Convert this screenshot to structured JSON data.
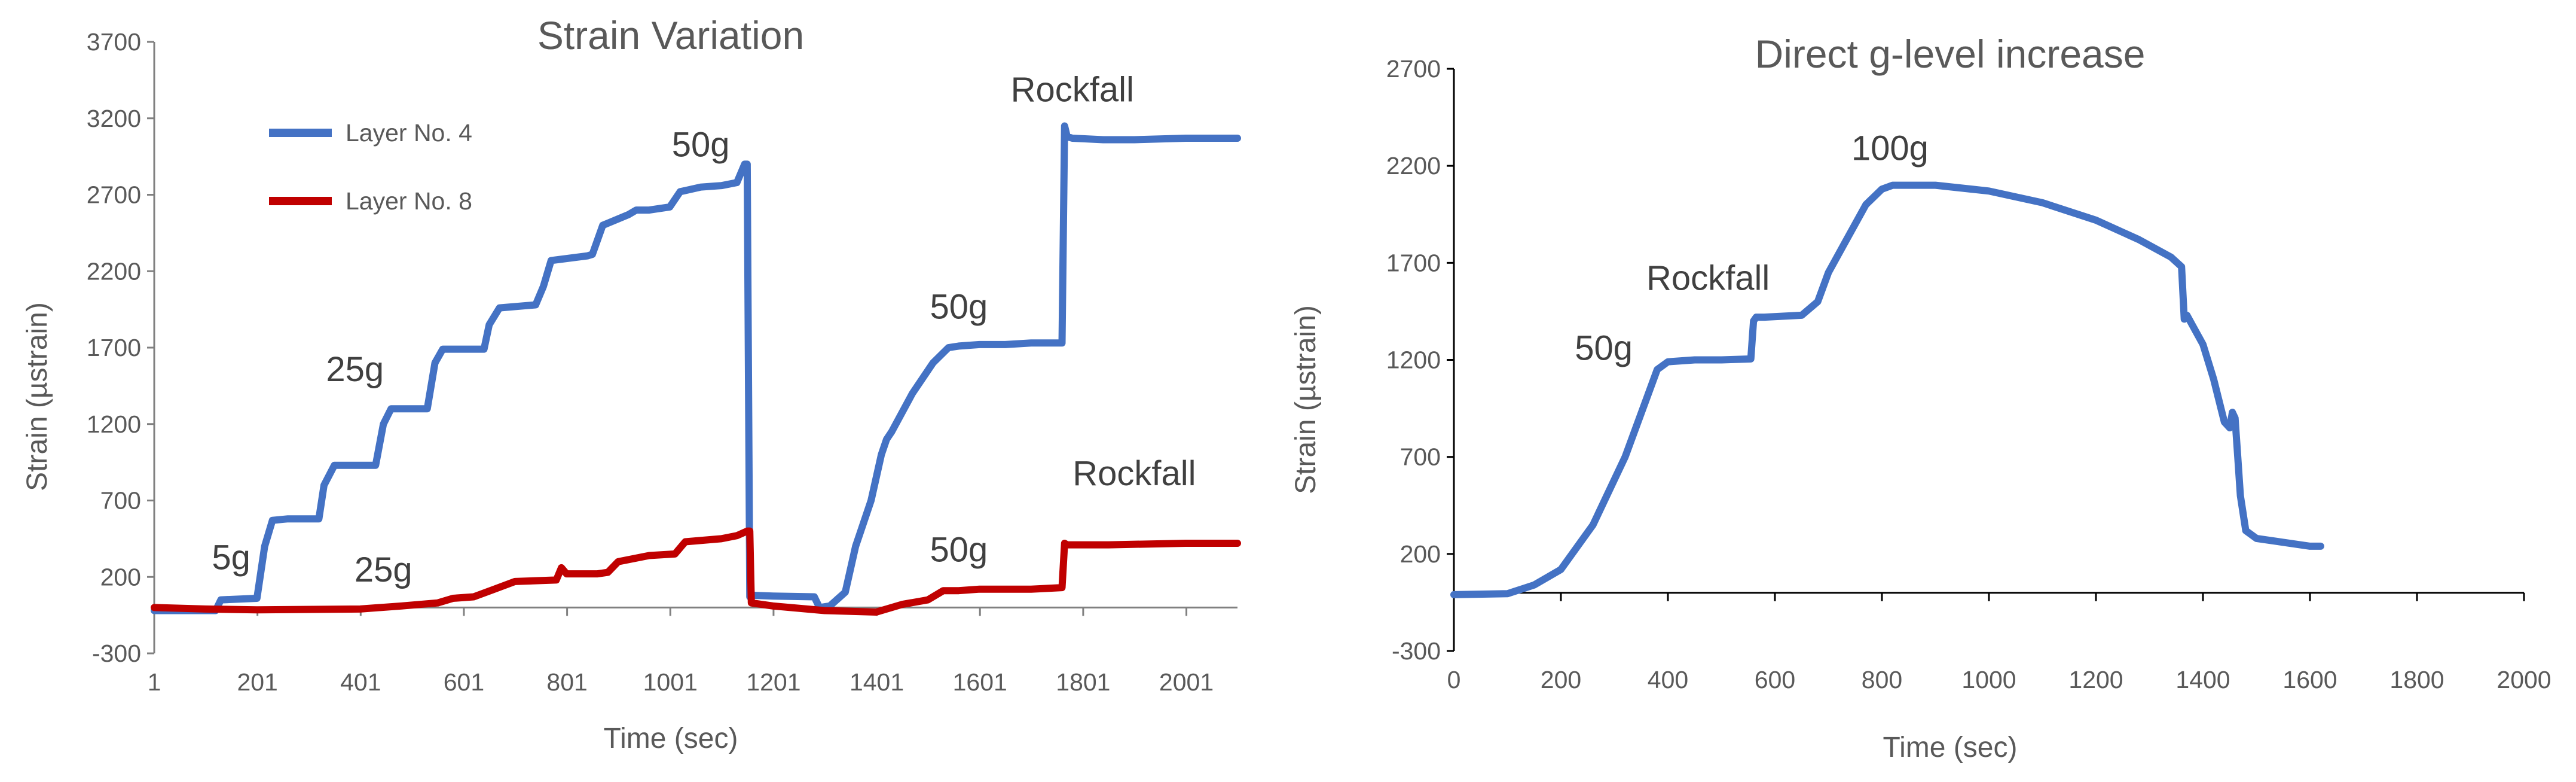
{
  "chart_data": [
    {
      "type": "line",
      "title": "Strain Variation",
      "xlabel": "Time (sec)",
      "ylabel": "Strain (µstrain)",
      "xlim": [
        1,
        2100
      ],
      "ylim": [
        -300,
        3700
      ],
      "x_ticks": [
        1,
        201,
        401,
        601,
        801,
        1001,
        1201,
        1401,
        1601,
        1801,
        2001
      ],
      "y_ticks": [
        -300,
        200,
        700,
        1200,
        1700,
        2200,
        2700,
        3200,
        3700
      ],
      "grid": false,
      "legend_position": "top-left",
      "series": [
        {
          "name": "Layer No. 4",
          "color": "#4472C4",
          "x": [
            1,
            120,
            130,
            200,
            215,
            230,
            260,
            320,
            330,
            350,
            430,
            445,
            460,
            530,
            545,
            560,
            640,
            650,
            670,
            740,
            755,
            770,
            840,
            850,
            870,
            920,
            935,
            960,
            1000,
            1020,
            1060,
            1100,
            1130,
            1145,
            1150,
            1155,
            1158,
            1200,
            1280,
            1290,
            1310,
            1340,
            1360,
            1390,
            1410,
            1420,
            1430,
            1470,
            1510,
            1540,
            1560,
            1600,
            1650,
            1700,
            1760,
            1765,
            1770,
            1780,
            1840,
            1900,
            2000,
            2100
          ],
          "y": [
            -20,
            -20,
            50,
            60,
            400,
            570,
            580,
            580,
            800,
            930,
            930,
            1200,
            1300,
            1300,
            1600,
            1690,
            1690,
            1850,
            1960,
            1980,
            2100,
            2270,
            2300,
            2310,
            2500,
            2570,
            2600,
            2600,
            2620,
            2720,
            2750,
            2760,
            2780,
            2900,
            2900,
            70,
            80,
            75,
            70,
            0,
            10,
            100,
            400,
            700,
            1000,
            1100,
            1150,
            1400,
            1600,
            1700,
            1710,
            1720,
            1720,
            1730,
            1730,
            3150,
            3080,
            3070,
            3060,
            3060,
            3070,
            3070
          ]
        },
        {
          "name": "Layer No. 8",
          "color": "#C00000",
          "x": [
            1,
            100,
            200,
            400,
            480,
            550,
            580,
            620,
            660,
            700,
            780,
            790,
            800,
            860,
            880,
            900,
            960,
            1010,
            1030,
            1100,
            1130,
            1150,
            1155,
            1158,
            1200,
            1300,
            1400,
            1450,
            1500,
            1530,
            1560,
            1600,
            1700,
            1760,
            1765,
            1770,
            1850,
            2000,
            2100
          ],
          "y": [
            0,
            -10,
            -15,
            -10,
            10,
            30,
            60,
            70,
            120,
            170,
            180,
            260,
            220,
            220,
            230,
            300,
            340,
            350,
            430,
            450,
            470,
            500,
            500,
            30,
            10,
            -20,
            -30,
            20,
            50,
            110,
            110,
            120,
            120,
            130,
            420,
            410,
            410,
            420,
            420
          ]
        }
      ],
      "annotations": [
        {
          "text": "5g",
          "x": 150,
          "y": 250
        },
        {
          "text": "25g",
          "x": 390,
          "y": 1480
        },
        {
          "text": "25g",
          "x": 445,
          "y": 170
        },
        {
          "text": "50g",
          "x": 1060,
          "y": 2950
        },
        {
          "text": "50g",
          "x": 1560,
          "y": 1890
        },
        {
          "text": "50g",
          "x": 1560,
          "y": 300
        },
        {
          "text": "Rockfall",
          "x": 1780,
          "y": 3310
        },
        {
          "text": "Rockfall",
          "x": 1900,
          "y": 800
        }
      ]
    },
    {
      "type": "line",
      "title": "Direct g-level increase",
      "xlabel": "Time (sec)",
      "ylabel": "Strain (µstrain)",
      "xlim": [
        0,
        2000
      ],
      "ylim": [
        -300,
        2700
      ],
      "x_ticks": [
        0,
        200,
        400,
        600,
        800,
        1000,
        1200,
        1400,
        1600,
        1800,
        2000
      ],
      "y_ticks": [
        -300,
        200,
        700,
        1200,
        1700,
        2200,
        2700
      ],
      "grid": false,
      "series": [
        {
          "name": "",
          "color": "#4472C4",
          "x": [
            0,
            100,
            150,
            200,
            260,
            320,
            360,
            380,
            400,
            450,
            500,
            555,
            560,
            565,
            580,
            650,
            680,
            700,
            730,
            770,
            800,
            820,
            900,
            1000,
            1100,
            1200,
            1280,
            1340,
            1360,
            1365,
            1370,
            1380,
            1400,
            1420,
            1440,
            1450,
            1455,
            1460,
            1465,
            1470,
            1480,
            1500,
            1550,
            1600,
            1620
          ],
          "y": [
            -10,
            -5,
            40,
            120,
            350,
            700,
            1000,
            1150,
            1190,
            1200,
            1200,
            1205,
            1400,
            1420,
            1420,
            1430,
            1500,
            1650,
            1800,
            2000,
            2080,
            2100,
            2100,
            2070,
            2010,
            1920,
            1820,
            1730,
            1680,
            1410,
            1430,
            1380,
            1280,
            1100,
            880,
            850,
            930,
            900,
            700,
            500,
            320,
            280,
            260,
            240,
            240
          ]
        }
      ],
      "annotations": [
        {
          "text": "50g",
          "x": 280,
          "y": 1200
        },
        {
          "text": "Rockfall",
          "x": 475,
          "y": 1560
        },
        {
          "text": "100g",
          "x": 815,
          "y": 2230
        }
      ]
    }
  ]
}
